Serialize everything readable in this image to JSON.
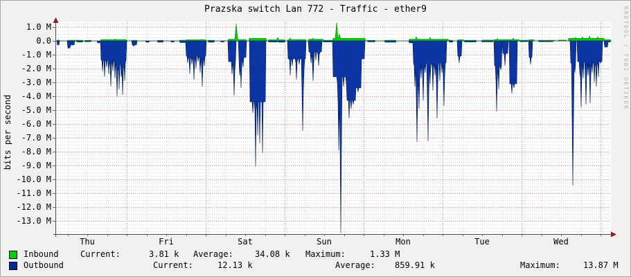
{
  "window": {
    "title": "Prazska switch Lan 772 - Traffic - ether9"
  },
  "watermark": "RRDTOOL / TOBI OETIKER",
  "legend": {
    "rows": [
      {
        "label": "Inbound",
        "swatch": "#00CF00",
        "stats": [
          {
            "k": "Current:",
            "v": "3.81 k"
          },
          {
            "k": "Average:",
            "v": "34.08 k"
          },
          {
            "k": "Maximum:",
            "v": "1.33 M"
          }
        ]
      },
      {
        "label": "Outbound",
        "swatch": "#002A97",
        "stats": [
          {
            "k": "Current:",
            "v": "12.13 k"
          },
          {
            "k": "Average:",
            "v": "859.91 k"
          },
          {
            "k": "Maximum:",
            "v": "13.87 M"
          }
        ]
      }
    ]
  },
  "chart_data": {
    "type": "area",
    "title": "Prazska switch Lan 772 - Traffic - ether9",
    "ylabel": "bits per second",
    "y_unit_M": 1000000,
    "ylim": [
      -13.95,
      1.35
    ],
    "y_tick_values": [
      1,
      0,
      -1,
      -2,
      -3,
      -4,
      -5,
      -6,
      -7,
      -8,
      -9,
      -10,
      -11,
      -12,
      -13
    ],
    "y_tick_labels": [
      "1.0 M",
      "0.0",
      "-1.0 M",
      "-2.0 M",
      "-3.0 M",
      "-4.0 M",
      "-5.0 M",
      "-6.0 M",
      "-7.0 M",
      "-8.0 M",
      "-9.0 M",
      "-10.0 M",
      "-11.0 M",
      "-12.0 M",
      "-13.0 M"
    ],
    "x_tick_labels": [
      "Thu",
      "Fri",
      "Sat",
      "Sun",
      "Mon",
      "Tue",
      "Wed"
    ],
    "x_span_days": 7,
    "grid": true,
    "legend_position": "bottom",
    "x_unit": "px along time axis (plot 80..881, one day = 114px, day labels at noon)",
    "series": [
      {
        "name": "Inbound",
        "color": "#00CC00",
        "stroke": "#009300",
        "current": "3.81 k",
        "average": "34.08 k",
        "maximum": "1.33 M",
        "blocks_M": [
          [
            82,
            84,
            0.06
          ],
          [
            97,
            118,
            0.05
          ],
          [
            122,
            130,
            0.04
          ],
          [
            145,
            181,
            0.1
          ],
          [
            190,
            196,
            0.05
          ],
          [
            227,
            234,
            0.04
          ],
          [
            259,
            267,
            0.05
          ],
          [
            268,
            296,
            0.08
          ],
          [
            300,
            308,
            0.04
          ],
          [
            329,
            343,
            0.12
          ],
          [
            344,
            354,
            0.1
          ],
          [
            359,
            383,
            0.18
          ],
          [
            387,
            410,
            0.08
          ],
          [
            415,
            440,
            0.1
          ],
          [
            445,
            465,
            0.12
          ],
          [
            466,
            478,
            0.05
          ],
          [
            480,
            526,
            0.18
          ],
          [
            530,
            540,
            0.04
          ],
          [
            555,
            570,
            0.05
          ],
          [
            590,
            646,
            0.12
          ],
          [
            648,
            652,
            0.05
          ],
          [
            660,
            668,
            0.08
          ],
          [
            670,
            686,
            0.05
          ],
          [
            695,
            712,
            0.06
          ],
          [
            713,
            748,
            0.1
          ],
          [
            750,
            762,
            0.05
          ],
          [
            763,
            770,
            0.08
          ],
          [
            777,
            800,
            0.05
          ],
          [
            805,
            816,
            0.06
          ],
          [
            820,
            871,
            0.18
          ],
          [
            872,
            880,
            0.08
          ]
        ],
        "spikes_M": [
          [
            165,
            0.15
          ],
          [
            290,
            0.12
          ],
          [
            340,
            1.25
          ],
          [
            400,
            0.25
          ],
          [
            418,
            0.2
          ],
          [
            451,
            0.2
          ],
          [
            485,
            1.33
          ],
          [
            489,
            0.5
          ],
          [
            600,
            0.3
          ],
          [
            620,
            0.25
          ],
          [
            717,
            0.18
          ],
          [
            740,
            0.2
          ],
          [
            830,
            0.25
          ],
          [
            840,
            0.3
          ],
          [
            850,
            0.35
          ],
          [
            862,
            0.3
          ]
        ]
      },
      {
        "name": "Outbound",
        "color": "#0C34A2",
        "stroke": "#00205E",
        "current": "12.13 k",
        "average": "859.91 k",
        "maximum": "13.87 M",
        "blocks_M": [
          [
            82,
            84,
            -0.3
          ],
          [
            97,
            100,
            -0.5
          ],
          [
            101,
            106,
            -0.3
          ],
          [
            110,
            118,
            -0.08
          ],
          [
            122,
            130,
            -0.06
          ],
          [
            140,
            143,
            -0.15
          ],
          [
            145,
            181,
            -1.4
          ],
          [
            190,
            196,
            -0.3
          ],
          [
            210,
            214,
            -0.1
          ],
          [
            227,
            234,
            -0.1
          ],
          [
            246,
            250,
            -0.08
          ],
          [
            259,
            267,
            -0.12
          ],
          [
            268,
            296,
            -1.1
          ],
          [
            300,
            308,
            -0.1
          ],
          [
            318,
            322,
            -0.08
          ],
          [
            329,
            339,
            -1.5
          ],
          [
            344,
            354,
            -1.2
          ],
          [
            360,
            382,
            -4.4
          ],
          [
            387,
            399,
            -0.08
          ],
          [
            401,
            410,
            -0.1
          ],
          [
            415,
            440,
            -1.3
          ],
          [
            445,
            463,
            -0.8
          ],
          [
            466,
            478,
            -0.08
          ],
          [
            480,
            500,
            -2.6
          ],
          [
            500,
            512,
            -4.3
          ],
          [
            512,
            520,
            -3.4
          ],
          [
            520,
            525,
            -1.3
          ],
          [
            530,
            540,
            -0.07
          ],
          [
            555,
            570,
            -0.1
          ],
          [
            590,
            595,
            -0.15
          ],
          [
            596,
            643,
            -1.6
          ],
          [
            648,
            652,
            -0.1
          ],
          [
            660,
            665,
            -1.1
          ],
          [
            670,
            686,
            -0.08
          ],
          [
            695,
            710,
            -0.07
          ],
          [
            713,
            723,
            -1.8
          ],
          [
            725,
            732,
            -0.9
          ],
          [
            735,
            745,
            -3.1
          ],
          [
            750,
            760,
            -0.06
          ],
          [
            763,
            767,
            -1.2
          ],
          [
            777,
            797,
            -0.06
          ],
          [
            823,
            830,
            -1.6
          ],
          [
            833,
            868,
            -1.5
          ],
          [
            872,
            876,
            -0.45
          ],
          [
            877,
            880,
            -0.08
          ]
        ],
        "spikes_M": [
          [
            98,
            -0.55
          ],
          [
            147,
            -2.2
          ],
          [
            150,
            -2.6
          ],
          [
            153,
            -1.9
          ],
          [
            156,
            -2.4
          ],
          [
            159,
            -3.3
          ],
          [
            162,
            -2.2
          ],
          [
            165,
            -2.7
          ],
          [
            168,
            -4.0
          ],
          [
            171,
            -3.5
          ],
          [
            174,
            -2.6
          ],
          [
            176,
            -3.9
          ],
          [
            179,
            -2.9
          ],
          [
            192,
            -0.4
          ],
          [
            270,
            -1.6
          ],
          [
            273,
            -2.4
          ],
          [
            276,
            -1.7
          ],
          [
            279,
            -2.8
          ],
          [
            282,
            -2.0
          ],
          [
            285,
            -1.5
          ],
          [
            288,
            -2.3
          ],
          [
            291,
            -3.3
          ],
          [
            294,
            -1.8
          ],
          [
            334,
            -2.4
          ],
          [
            337,
            -3.95
          ],
          [
            345,
            -2.5
          ],
          [
            347,
            -3.4
          ],
          [
            350,
            -1.9
          ],
          [
            364,
            -5.2
          ],
          [
            368,
            -9.1
          ],
          [
            371,
            -6.8
          ],
          [
            374,
            -7.4
          ],
          [
            378,
            -8.1
          ],
          [
            418,
            -2.5
          ],
          [
            421,
            -1.8
          ],
          [
            427,
            -2.8
          ],
          [
            431,
            -1.7
          ],
          [
            436,
            -6.5
          ],
          [
            438,
            -2.1
          ],
          [
            448,
            -1.6
          ],
          [
            451,
            -2.9
          ],
          [
            455,
            -1.4
          ],
          [
            459,
            -1.8
          ],
          [
            482,
            -1.3
          ],
          [
            486,
            -3.0
          ],
          [
            488,
            -7.9
          ],
          [
            491,
            -13.87
          ],
          [
            495,
            -3.3
          ],
          [
            499,
            -3.1
          ],
          [
            503,
            -5.6
          ],
          [
            506,
            -4.9
          ],
          [
            509,
            -4.6
          ],
          [
            516,
            -3.7
          ],
          [
            598,
            -3.3
          ],
          [
            601,
            -7.3
          ],
          [
            604,
            -4.9
          ],
          [
            607,
            -2.7
          ],
          [
            610,
            -4.3
          ],
          [
            613,
            -2.3
          ],
          [
            617,
            -7.25
          ],
          [
            620,
            -3.1
          ],
          [
            624,
            -3.6
          ],
          [
            627,
            -2.5
          ],
          [
            630,
            -5.6
          ],
          [
            634,
            -2.9
          ],
          [
            637,
            -2.3
          ],
          [
            640,
            -4.7
          ],
          [
            662,
            -1.6
          ],
          [
            716,
            -5.1
          ],
          [
            719,
            -3.5
          ],
          [
            722,
            -2.1
          ],
          [
            728,
            -1.8
          ],
          [
            738,
            -3.8
          ],
          [
            741,
            -3.4
          ],
          [
            765,
            -1.7
          ],
          [
            826,
            -10.45
          ],
          [
            829,
            -2.3
          ],
          [
            836,
            -2.3
          ],
          [
            838,
            -4.8
          ],
          [
            841,
            -2.7
          ],
          [
            845,
            -4.6
          ],
          [
            848,
            -2.5
          ],
          [
            851,
            -4.5
          ],
          [
            854,
            -2.3
          ],
          [
            857,
            -3.0
          ],
          [
            860,
            -3.3
          ],
          [
            863,
            -2.6
          ],
          [
            866,
            -1.6
          ]
        ]
      }
    ]
  }
}
